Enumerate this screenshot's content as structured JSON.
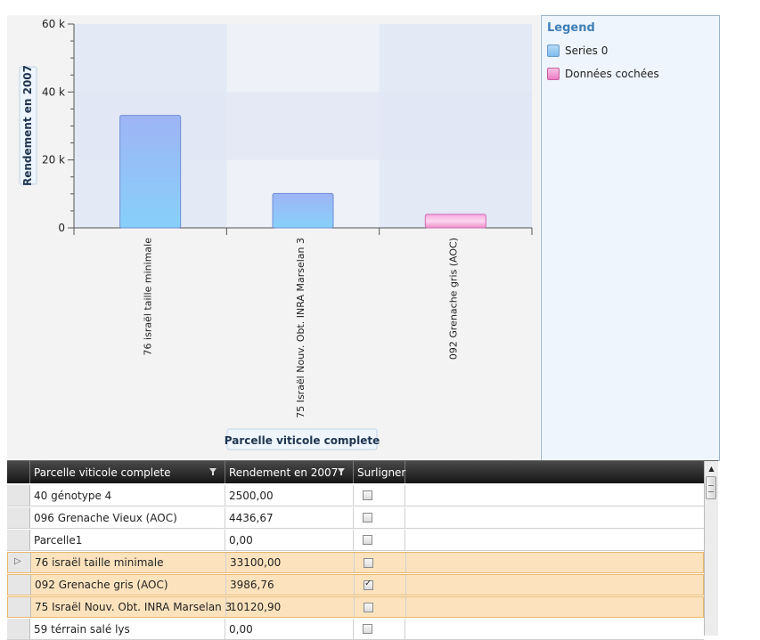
{
  "legend": {
    "title": "Legend",
    "items": [
      {
        "label": "Series 0",
        "color": "#8fc4f0"
      },
      {
        "label": "Données cochées",
        "color": "#f08ccc"
      }
    ]
  },
  "chart_data": {
    "type": "bar",
    "ylabel": "Rendement en 2007",
    "xlabel": "Parcelle viticole complete",
    "ylim": [
      0,
      60000
    ],
    "yticks": [
      "0",
      "20 k",
      "40 k",
      "60 k"
    ],
    "categories": [
      "76 israël taille minimale",
      "75 Israël Nouv. Obt. INRA Marselan 3",
      "092 Grenache gris (AOC)"
    ],
    "series": [
      {
        "name": "Series 0",
        "values": [
          33100.0,
          10120.9,
          null
        ],
        "color": "#8fc4f0"
      },
      {
        "name": "Données cochées",
        "values": [
          null,
          null,
          3986.76
        ],
        "color": "#f08ccc"
      }
    ]
  },
  "grid": {
    "columns": [
      "Parcelle viticole complete",
      "Rendement en 2007",
      "Surligner"
    ],
    "rows": [
      {
        "name": "40 génotype 4",
        "value": "2500,00",
        "checked": false,
        "selected": false,
        "current": false
      },
      {
        "name": "096 Grenache Vieux (AOC)",
        "value": "4436,67",
        "checked": false,
        "selected": false,
        "current": false
      },
      {
        "name": "Parcelle1",
        "value": "0,00",
        "checked": false,
        "selected": false,
        "current": false
      },
      {
        "name": "76 israël taille minimale",
        "value": "33100,00",
        "checked": false,
        "selected": true,
        "current": true
      },
      {
        "name": "092 Grenache gris (AOC)",
        "value": "3986,76",
        "checked": true,
        "selected": true,
        "current": false
      },
      {
        "name": "75 Israël Nouv. Obt. INRA Marselan 3",
        "value": "10120,90",
        "checked": false,
        "selected": true,
        "current": false
      },
      {
        "name": "59 térrain salé lys",
        "value": "0,00",
        "checked": false,
        "selected": false,
        "current": false
      }
    ]
  }
}
